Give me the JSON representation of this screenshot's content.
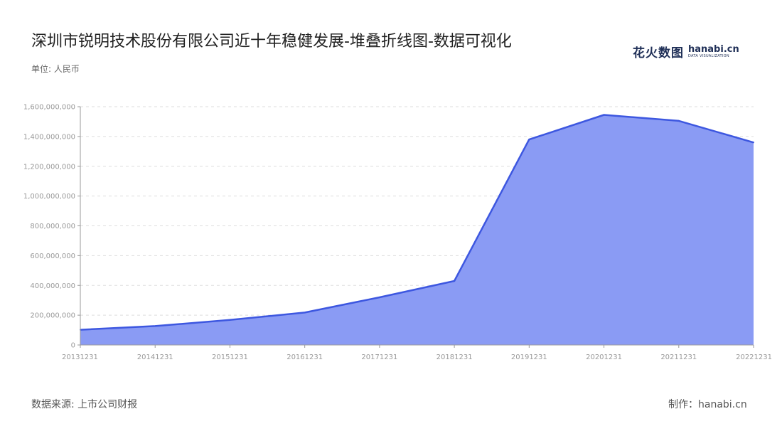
{
  "title": "深圳市锐明技术股份有限公司近十年稳健发展-堆叠折线图-数据可视化",
  "unit": "单位: 人民币",
  "source": "数据来源: 上市公司财报",
  "maker": "制作：hanabi.cn",
  "brand": {
    "cn": "花火数图",
    "en": "hanabi.cn",
    "sub": "DATA VISUALIZATION"
  },
  "colors": {
    "area_fill": "#8a9bf4",
    "line": "#3d57e0",
    "grid": "#dddddd",
    "axis": "#999999"
  },
  "chart_data": {
    "type": "area",
    "title": "深圳市锐明技术股份有限公司近十年稳健发展-堆叠折线图-数据可视化",
    "xlabel": "",
    "ylabel": "单位: 人民币",
    "categories": [
      "20131231",
      "20141231",
      "20151231",
      "20161231",
      "20171231",
      "20181231",
      "20191231",
      "20201231",
      "20211231",
      "20221231"
    ],
    "series": [
      {
        "values": [
          102000000,
          127000000,
          168000000,
          218000000,
          320000000,
          430000000,
          1380000000,
          1545000000,
          1505000000,
          1360000000
        ]
      }
    ],
    "ylim": [
      0,
      1600000000
    ],
    "yticks": [
      0,
      200000000,
      400000000,
      600000000,
      800000000,
      1000000000,
      1200000000,
      1400000000,
      1600000000
    ],
    "ytick_labels": [
      "0",
      "200,000,000",
      "400,000,000",
      "600,000,000",
      "800,000,000",
      "1,000,000,000",
      "1,200,000,000",
      "1,400,000,000",
      "1,600,000,000"
    ],
    "grid": true,
    "stacked": true
  }
}
